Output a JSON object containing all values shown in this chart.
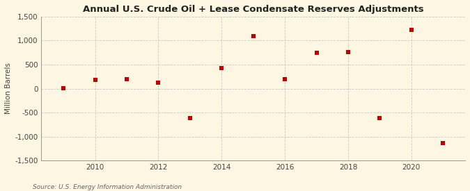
{
  "title": "Annual U.S. Crude Oil + Lease Condensate Reserves Adjustments",
  "ylabel": "Million Barrels",
  "source": "Source: U.S. Energy Information Administration",
  "years": [
    2009,
    2010,
    2011,
    2012,
    2013,
    2014,
    2015,
    2016,
    2017,
    2018,
    2019,
    2020,
    2021
  ],
  "values": [
    10,
    175,
    200,
    130,
    -620,
    430,
    1100,
    200,
    750,
    760,
    -620,
    1230,
    -1130
  ],
  "marker_color": "#c00000",
  "marker_size": 5,
  "background_color": "#fdf6e3",
  "plot_bg_color": "#fdf6e3",
  "grid_color": "#c8c8c8",
  "ylim": [
    -1500,
    1500
  ],
  "yticks": [
    -1500,
    -1000,
    -500,
    0,
    500,
    1000,
    1500
  ],
  "xlim": [
    2008.3,
    2021.7
  ],
  "xticks": [
    2010,
    2012,
    2014,
    2016,
    2018,
    2020
  ]
}
